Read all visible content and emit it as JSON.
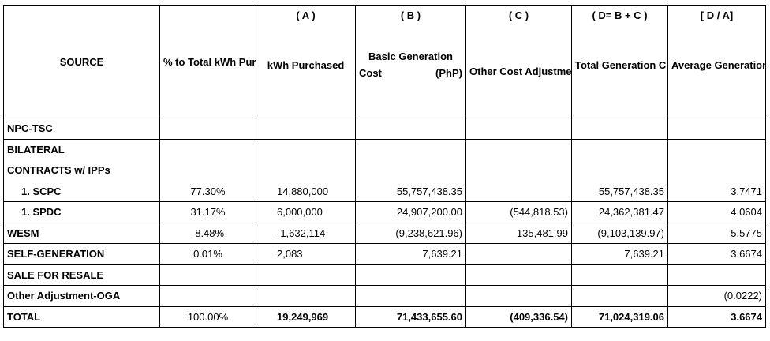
{
  "table": {
    "headers": {
      "source": "SOURCE",
      "pct": "% to Total kWh Purchased",
      "a_letter": "( A )",
      "kwh": "kWh Purchased",
      "b_letter": "( B )",
      "basic_l1": "Basic Generation",
      "basic_l2a": "Cost",
      "basic_l2b": "(PhP)",
      "c_letter": "( C )",
      "other": "Other Cost Adjustments (DAA, NSS, and Other Billing Adjustments) (PhP)",
      "d_letter": "( D= B + C )",
      "total_gen": "Total Generation Cost for the Month (PhP)",
      "da_letter": "[ D / A]",
      "avg": "Average Generation Cost (PhP/kWh)"
    },
    "rows": {
      "npc": {
        "source": "NPC-TSC",
        "pct": "",
        "kwh": "",
        "basic": "",
        "other": "",
        "total": "",
        "avg": ""
      },
      "bilateral_l1": {
        "source": "BILATERAL"
      },
      "bilateral_l2": {
        "source": "CONTRACTS w/ IPPs"
      },
      "scpc": {
        "source": "1.  SCPC",
        "pct": "77.30%",
        "kwh": "14,880,000",
        "basic": "55,757,438.35",
        "other": "",
        "total": "55,757,438.35",
        "avg": "3.7471"
      },
      "spdc": {
        "source": "1.  SPDC",
        "pct": "31.17%",
        "kwh": "6,000,000",
        "basic": "24,907,200.00",
        "other": "(544,818.53)",
        "total": "24,362,381.47",
        "avg": "4.0604"
      },
      "wesm": {
        "source": "WESM",
        "pct": "-8.48%",
        "kwh": "-1,632,114",
        "basic": "(9,238,621.96)",
        "other": "135,481.99",
        "total": "(9,103,139.97)",
        "avg": "5.5775"
      },
      "selfgen": {
        "source": "SELF-GENERATION",
        "pct": "0.01%",
        "kwh": "2,083",
        "basic": "7,639.21",
        "other": "",
        "total": "7,639.21",
        "avg": "3.6674"
      },
      "resale": {
        "source": "SALE FOR RESALE",
        "pct": "",
        "kwh": "",
        "basic": "",
        "other": "",
        "total": "",
        "avg": ""
      },
      "oga": {
        "source": "Other Adjustment-OGA",
        "pct": "",
        "kwh": "",
        "basic": "",
        "other": "",
        "total": "",
        "avg": "(0.0222)"
      },
      "total": {
        "source": "TOTAL",
        "pct": "100.00%",
        "kwh": "19,249,969",
        "basic": "71,433,655.60",
        "other": "(409,336.54)",
        "total": "71,024,319.06",
        "avg": "3.6674"
      }
    }
  }
}
